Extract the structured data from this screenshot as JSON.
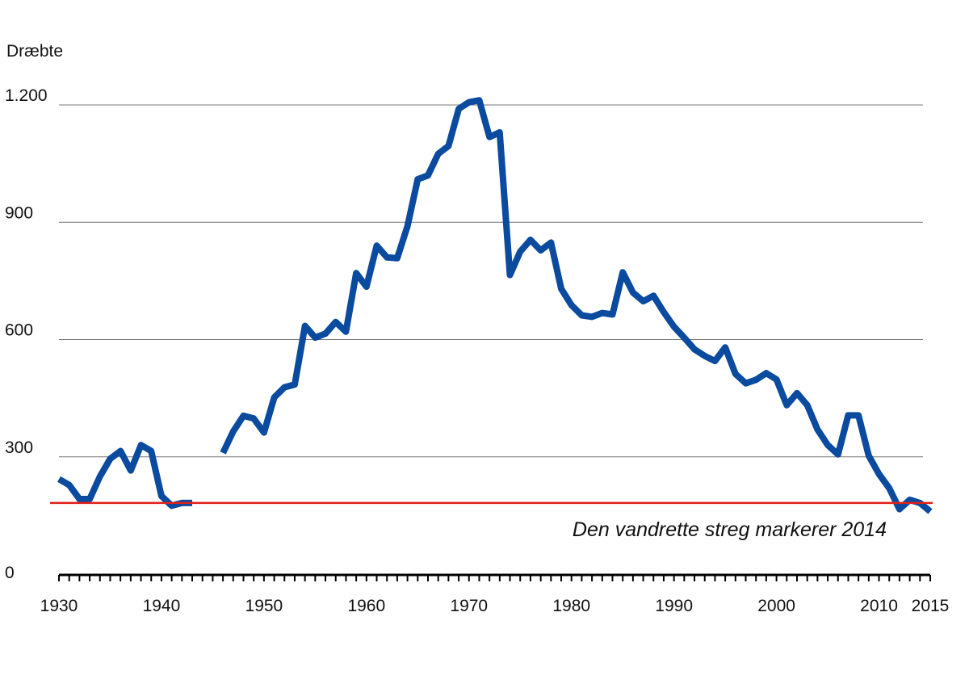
{
  "chart_data": {
    "type": "line",
    "title": "",
    "ylabel": "Dræbte",
    "xlabel": "",
    "xlim": [
      1930,
      2015
    ],
    "ylim": [
      0,
      1200
    ],
    "x_ticks": [
      1930,
      1940,
      1950,
      1960,
      1970,
      1980,
      1990,
      2000,
      2010,
      2015
    ],
    "y_ticks": [
      {
        "value": 0,
        "label": "0"
      },
      {
        "value": 300,
        "label": "300"
      },
      {
        "value": 600,
        "label": "600"
      },
      {
        "value": 900,
        "label": "900"
      },
      {
        "value": 1200,
        "label": "1.200"
      }
    ],
    "grid": "horizontal",
    "series": [
      {
        "name": "",
        "color": "#0a4a9f",
        "segments": [
          {
            "x": [
              1930,
              1931,
              1932,
              1933,
              1934,
              1935,
              1936,
              1937,
              1938,
              1939,
              1940,
              1941,
              1942,
              1943
            ],
            "y": [
              243,
              228,
              192,
              192,
              250,
              295,
              315,
              265,
              330,
              315,
              200,
              175,
              182,
              182
            ]
          },
          {
            "x": [
              1946,
              1947,
              1948,
              1949,
              1950,
              1951,
              1952,
              1953,
              1954,
              1955,
              1956,
              1957,
              1958,
              1959,
              1960,
              1961,
              1962,
              1963,
              1964,
              1965,
              1966,
              1967,
              1968,
              1969,
              1970,
              1971,
              1972,
              1973,
              1974,
              1975,
              1976,
              1977,
              1978,
              1979,
              1980,
              1981,
              1982,
              1983,
              1984,
              1985,
              1986,
              1987,
              1988,
              1989,
              1990,
              1991,
              1992,
              1993,
              1994,
              1995,
              1996,
              1997,
              1998,
              1999,
              2000,
              2001,
              2002,
              2003,
              2004,
              2005,
              2006,
              2007,
              2008,
              2009,
              2010,
              2011,
              2012,
              2013,
              2014,
              2015
            ],
            "y": [
              310,
              365,
              405,
              398,
              362,
              452,
              478,
              485,
              635,
              605,
              615,
              645,
              620,
              770,
              735,
              840,
              810,
              808,
              890,
              1010,
              1020,
              1075,
              1095,
              1190,
              1207,
              1212,
              1118,
              1130,
              765,
              825,
              855,
              828,
              848,
              730,
              688,
              662,
              658,
              668,
              664,
              772,
              720,
              698,
              712,
              670,
              633,
              605,
              575,
              558,
              545,
              580,
              512,
              488,
              497,
              514,
              498,
              432,
              463,
              432,
              370,
              330,
              306,
              406,
              406,
              303,
              256,
              220,
              166,
              190,
              182,
              160
            ]
          }
        ]
      }
    ],
    "reference_line": {
      "y": 182,
      "color": "#e01f17",
      "label": "Den vandrette streg markerer 2014"
    }
  }
}
